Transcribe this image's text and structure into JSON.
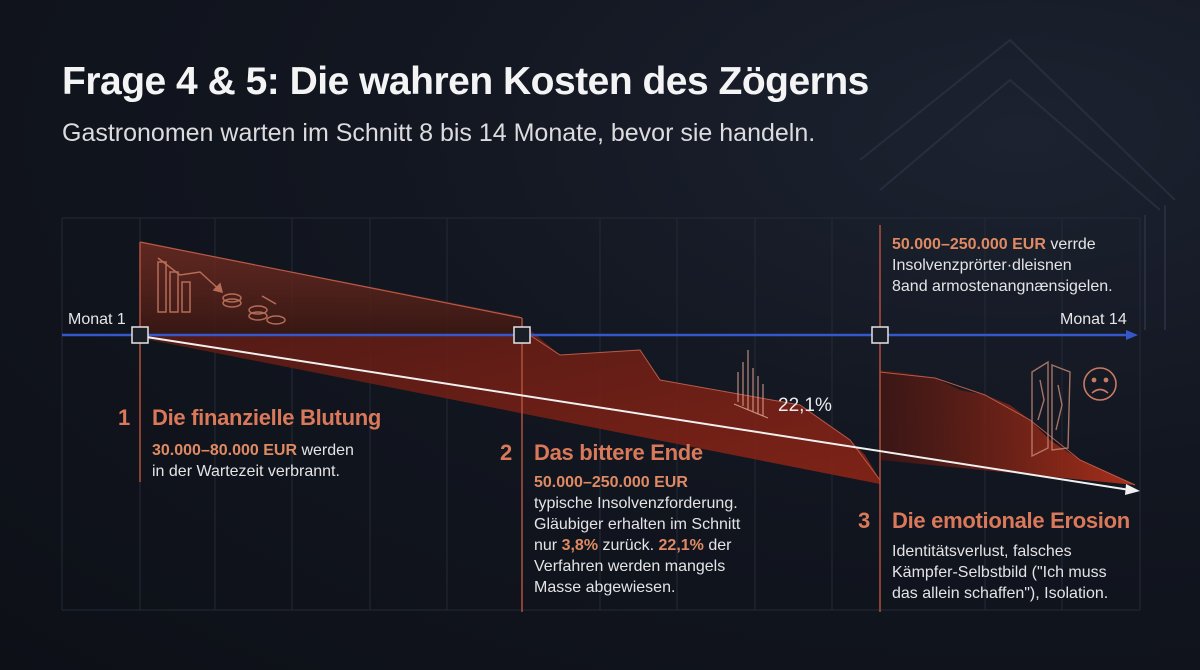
{
  "title": "Frage 4 & 5: Die wahren Kosten des Zögerns",
  "subtitle": "Gastronomen warten im Schnitt 8 bis 14 Monate, bevor sie handeln.",
  "axis": {
    "start_label": "Monat 1",
    "end_label": "Monat 14"
  },
  "steps": [
    {
      "number": "1",
      "title": "Die finanzielle Blutung",
      "amount": "30.000–80.000 EUR",
      "text_a": " werden",
      "text_b": "in der Wartezeit verbrannt."
    },
    {
      "number": "2",
      "title": "Das bittere Ende",
      "amount": "50.000–250.000 EUR",
      "line1": "typische Insolvenzforderung.",
      "line2": "Gläubiger erhalten im Schnitt",
      "line3_pre": "nur ",
      "line3_hl1": "3,8%",
      "line3_mid": " zurück. ",
      "line3_hl2": "22,1%",
      "line3_post": " der",
      "line4": "Verfahren werden mangels",
      "line5": "Masse abgewiesen."
    },
    {
      "number": "3",
      "title": "Die emotionale Erosion",
      "line1": "Identitätsverlust, falsches",
      "line2": "Kämpfer-Selbstbild (\"Ich muss",
      "line3": "das allein schaffen\"), Isolation."
    }
  ],
  "callout": {
    "amount": "50.000–250.000 EUR",
    "text_1": " verrde",
    "line2": "Insolvenzprörter·dleisnen",
    "line3": "8and armostenangnænsigelen."
  },
  "chart_label": "22,1%",
  "icons": [
    "falling-bars-coins-icon",
    "broken-bars-icon",
    "crumbling-wall-icon",
    "sad-face-icon"
  ],
  "colors": {
    "accent": "#d9795a",
    "timeline": "#3657c9",
    "area": "#8e2a1c"
  }
}
